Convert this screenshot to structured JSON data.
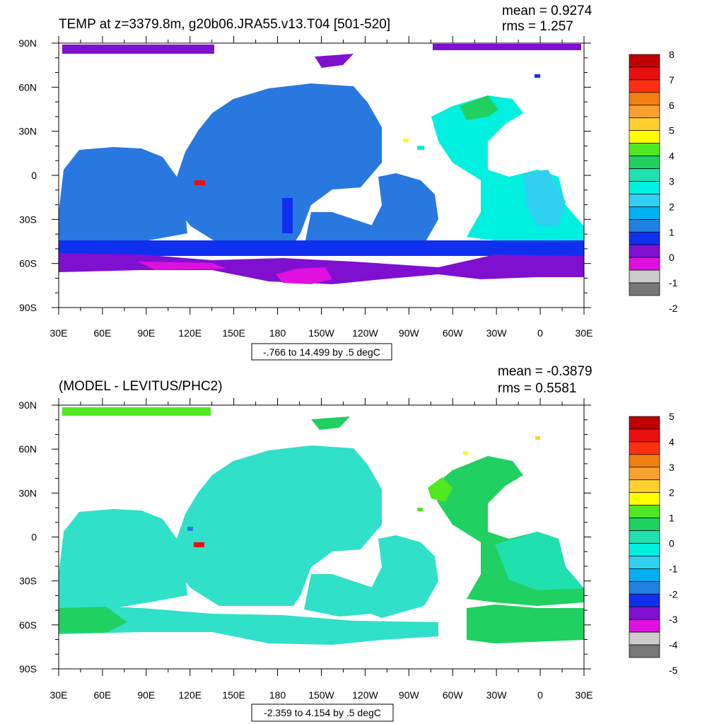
{
  "figure": {
    "panels": [
      {
        "title": "TEMP at z=3379.8m, g20b06.JRA55.v13.T04 [501-520]",
        "mean_text": "mean = 0.9274",
        "rms_text": "rms = 1.257",
        "range_text": "-.766 to 14.499 by .5 degC",
        "lat_ticks": [
          "90N",
          "60N",
          "30N",
          "0",
          "30S",
          "60S",
          "90S"
        ],
        "lon_ticks": [
          "30E",
          "60E",
          "90E",
          "120E",
          "150E",
          "180",
          "150W",
          "120W",
          "90W",
          "60W",
          "30W",
          "0",
          "30E"
        ],
        "colorbar_labels": [
          "8",
          "7",
          "6",
          "5",
          "4",
          "3",
          "2",
          "1",
          "0",
          "-1",
          "-2"
        ],
        "colorbar_colors": [
          "#c00000",
          "#e81010",
          "#ff3010",
          "#f08010",
          "#f8a030",
          "#ffd030",
          "#ffff00",
          "#50e820",
          "#20d060",
          "#20e0b0",
          "#00f0e0",
          "#30d0f0",
          "#00b0f0",
          "#2080e0",
          "#1030f0",
          "#8010d0",
          "#e010e0",
          "#cccccc",
          "#777777"
        ],
        "fill_color": "#2878e0"
      },
      {
        "title": "(MODEL - LEVITUS/PHC2)",
        "mean_text": "mean = -0.3879",
        "rms_text": "rms = 0.5581",
        "range_text": "-2.359 to 4.154 by .5 degC",
        "lat_ticks": [
          "90N",
          "60N",
          "30N",
          "0",
          "30S",
          "60S",
          "90S"
        ],
        "lon_ticks": [
          "30E",
          "60E",
          "90E",
          "120E",
          "150E",
          "180",
          "150W",
          "120W",
          "90W",
          "60W",
          "30W",
          "0",
          "30E"
        ],
        "colorbar_labels": [
          "5",
          "4",
          "3",
          "2",
          "1",
          "0",
          "-1",
          "-2",
          "-3",
          "-4",
          "-5"
        ],
        "colorbar_colors": [
          "#c00000",
          "#e81010",
          "#ff3010",
          "#f08010",
          "#f8a030",
          "#ffd030",
          "#ffff00",
          "#50e820",
          "#20d060",
          "#20e0b0",
          "#00f0e0",
          "#30d0f0",
          "#00b0f0",
          "#2080e0",
          "#1030f0",
          "#8010d0",
          "#e010e0",
          "#cccccc",
          "#777777"
        ],
        "fill_color": "#30e0c8"
      }
    ]
  },
  "chart_data": [
    {
      "type": "heatmap",
      "title": "TEMP at z=3379.8m, g20b06.JRA55.v13.T04 [501-520]",
      "units": "degC",
      "xlim": [
        "30E",
        "30E"
      ],
      "ylim": [
        "90S",
        "90N"
      ],
      "contour_range": {
        "min": -0.766,
        "max": 14.499,
        "interval": 0.5
      },
      "stats": {
        "mean": 0.9274,
        "rms": 1.257
      },
      "colorbar": {
        "min": -2,
        "max": 8,
        "labels": [
          8,
          7,
          6,
          5,
          4,
          3,
          2,
          1,
          0,
          -1,
          -2
        ]
      }
    },
    {
      "type": "heatmap",
      "title": "(MODEL - LEVITUS/PHC2)",
      "units": "degC",
      "xlim": [
        "30E",
        "30E"
      ],
      "ylim": [
        "90S",
        "90N"
      ],
      "contour_range": {
        "min": -2.359,
        "max": 4.154,
        "interval": 0.5
      },
      "stats": {
        "mean": -0.3879,
        "rms": 0.5581
      },
      "colorbar": {
        "min": -5,
        "max": 5,
        "labels": [
          5,
          4,
          3,
          2,
          1,
          0,
          -1,
          -2,
          -3,
          -4,
          -5
        ]
      }
    }
  ]
}
